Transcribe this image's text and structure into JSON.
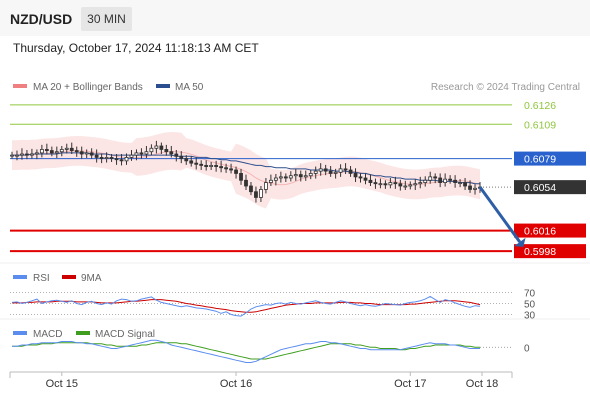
{
  "header": {
    "pair": "NZD/USD",
    "timeframe": "30 MIN",
    "datetime": "Thursday, October 17, 2024 11:18:13 AM CET"
  },
  "colors": {
    "price": "#333333",
    "ma20_band": "#f08080",
    "ma50": "#2b4f8e",
    "resistance": "#8fc73e",
    "pivot": "#2962cc",
    "support": "#e00000",
    "last": "#333333",
    "rsi": "#5b8dee",
    "rsi_ma": "#cc0000",
    "macd": "#5b8dee",
    "macd_signal": "#3f9e1f",
    "arrow": "#2e5fa6"
  },
  "chart_data": [
    {
      "type": "line",
      "title": "",
      "legend": [
        {
          "name": "MA 20 + Bollinger Bands",
          "color": "#f08080"
        },
        {
          "name": "MA 50",
          "color": "#2b4f8e"
        }
      ],
      "source": "Research © 2024 Trading Central",
      "x_tick_labels": [
        "Oct 15",
        "Oct 16",
        "Oct 17",
        "Oct 18"
      ],
      "x_tick_index": [
        10,
        45,
        80,
        94
      ],
      "n_bars": 95,
      "ylim": [
        0.5992,
        0.6132
      ],
      "levels": [
        {
          "value": 0.6126,
          "label": "0.6126",
          "kind": "resistance"
        },
        {
          "value": 0.6109,
          "label": "0.6109",
          "kind": "resistance"
        },
        {
          "value": 0.6079,
          "label": "0.6079",
          "kind": "pivot"
        },
        {
          "value": 0.6054,
          "label": "0.6054",
          "kind": "last"
        },
        {
          "value": 0.6016,
          "label": "0.6016",
          "kind": "support"
        },
        {
          "value": 0.5998,
          "label": "0.5998",
          "kind": "support"
        }
      ],
      "close": [
        0.6082,
        0.6082,
        0.6083,
        0.6082,
        0.6083,
        0.6084,
        0.6087,
        0.6086,
        0.6084,
        0.6085,
        0.6087,
        0.6088,
        0.6086,
        0.6085,
        0.6083,
        0.6084,
        0.6082,
        0.608,
        0.6079,
        0.608,
        0.6079,
        0.6078,
        0.6077,
        0.608,
        0.6082,
        0.6084,
        0.6083,
        0.6085,
        0.6088,
        0.609,
        0.6087,
        0.6085,
        0.6083,
        0.6081,
        0.6079,
        0.6077,
        0.6075,
        0.6074,
        0.6073,
        0.6072,
        0.6073,
        0.6072,
        0.6071,
        0.607,
        0.6069,
        0.6066,
        0.606,
        0.6055,
        0.605,
        0.6045,
        0.6052,
        0.6058,
        0.606,
        0.6062,
        0.6063,
        0.6062,
        0.6064,
        0.6065,
        0.6063,
        0.6064,
        0.6066,
        0.6068,
        0.607,
        0.6068,
        0.6066,
        0.6067,
        0.607,
        0.6069,
        0.6066,
        0.6063,
        0.6062,
        0.606,
        0.6058,
        0.6057,
        0.6057,
        0.6056,
        0.6058,
        0.6057,
        0.6055,
        0.6055,
        0.6056,
        0.6057,
        0.6058,
        0.606,
        0.6063,
        0.6062,
        0.6058,
        0.6061,
        0.606,
        0.6058,
        0.6058,
        0.6055,
        0.6052,
        0.6053,
        0.6054
      ],
      "ma50": [
        0.6082,
        0.6082,
        0.6082,
        0.6082,
        0.6083,
        0.6083,
        0.6083,
        0.6083,
        0.6083,
        0.6083,
        0.6084,
        0.6084,
        0.6084,
        0.6084,
        0.6084,
        0.6084,
        0.6083,
        0.6083,
        0.6083,
        0.6083,
        0.6082,
        0.6082,
        0.6082,
        0.6082,
        0.6082,
        0.6082,
        0.6082,
        0.6082,
        0.6082,
        0.6082,
        0.6082,
        0.6082,
        0.6082,
        0.6081,
        0.6081,
        0.6081,
        0.6081,
        0.608,
        0.608,
        0.608,
        0.6079,
        0.6079,
        0.6078,
        0.6078,
        0.6077,
        0.6077,
        0.6076,
        0.6075,
        0.6074,
        0.6073,
        0.6073,
        0.6072,
        0.6072,
        0.6071,
        0.6071,
        0.6071,
        0.607,
        0.607,
        0.607,
        0.607,
        0.6069,
        0.6069,
        0.6069,
        0.6069,
        0.6069,
        0.6068,
        0.6068,
        0.6068,
        0.6067,
        0.6067,
        0.6066,
        0.6066,
        0.6065,
        0.6064,
        0.6064,
        0.6063,
        0.6063,
        0.6062,
        0.6062,
        0.6061,
        0.6061,
        0.6061,
        0.606,
        0.606,
        0.606,
        0.606,
        0.6059,
        0.6059,
        0.6059,
        0.6059,
        0.6058,
        0.6058,
        0.6058,
        0.6057,
        0.6057
      ],
      "arrow": {
        "from_index": 94,
        "from_value": 0.6054,
        "to_index": 102,
        "to_value": 0.6006
      }
    },
    {
      "type": "line",
      "title": "",
      "legend": [
        {
          "name": "RSI",
          "color": "#5b8dee"
        },
        {
          "name": "9MA",
          "color": "#cc0000"
        }
      ],
      "levels": [
        {
          "value": 70,
          "label": "70"
        },
        {
          "value": 50,
          "label": "50"
        },
        {
          "value": 30,
          "label": "30"
        }
      ],
      "ylim": [
        20,
        80
      ],
      "rsi": [
        52,
        53,
        50,
        52,
        55,
        58,
        50,
        53,
        55,
        56,
        54,
        52,
        55,
        50,
        48,
        52,
        54,
        50,
        48,
        51,
        49,
        55,
        58,
        57,
        54,
        55,
        58,
        60,
        62,
        56,
        52,
        50,
        48,
        46,
        44,
        46,
        44,
        42,
        41,
        40,
        38,
        36,
        32,
        35,
        30,
        28,
        27,
        33,
        40,
        44,
        46,
        48,
        47,
        50,
        51,
        49,
        52,
        50,
        49,
        51,
        53,
        55,
        52,
        50,
        49,
        52,
        55,
        53,
        50,
        48,
        46,
        48,
        46,
        45,
        47,
        50,
        49,
        48,
        47,
        50,
        52,
        53,
        55,
        58,
        63,
        57,
        52,
        57,
        55,
        51,
        48,
        45,
        43,
        46,
        45
      ],
      "ma9": [
        51,
        51,
        51,
        52,
        52,
        53,
        53,
        53,
        53,
        54,
        54,
        54,
        54,
        53,
        53,
        53,
        53,
        52,
        51,
        51,
        51,
        51,
        52,
        53,
        54,
        54,
        55,
        56,
        57,
        57,
        57,
        56,
        55,
        54,
        52,
        50,
        49,
        47,
        46,
        44,
        43,
        41,
        40,
        39,
        37,
        36,
        35,
        34,
        34,
        35,
        37,
        39,
        41,
        43,
        45,
        47,
        48,
        49,
        50,
        50,
        50,
        51,
        51,
        51,
        51,
        51,
        52,
        52,
        52,
        51,
        51,
        50,
        50,
        49,
        48,
        48,
        48,
        48,
        48,
        48,
        49,
        49,
        50,
        51,
        52,
        53,
        54,
        55,
        55,
        55,
        54,
        53,
        52,
        50,
        48
      ]
    },
    {
      "type": "line",
      "title": "",
      "legend": [
        {
          "name": "MACD",
          "color": "#5b8dee"
        },
        {
          "name": "MACD Signal",
          "color": "#3f9e1f"
        }
      ],
      "levels": [
        {
          "value": 0,
          "label": "0"
        }
      ],
      "ylim": [
        -0.0016,
        0.0008
      ],
      "macd": [
        0.0001,
        0.0001,
        0.0002,
        0.0002,
        0.0003,
        0.0003,
        0.0004,
        0.0004,
        0.0004,
        0.0004,
        0.0005,
        0.0005,
        0.0005,
        0.0004,
        0.0004,
        0.0003,
        0.0003,
        0.0002,
        0.0001,
        0.0,
        -0.0001,
        -0.0001,
        0.0,
        0.0001,
        0.0002,
        0.0003,
        0.0004,
        0.0005,
        0.0006,
        0.0006,
        0.0005,
        0.0004,
        0.0002,
        0.0001,
        0.0,
        -0.0001,
        -0.0002,
        -0.0003,
        -0.0004,
        -0.0005,
        -0.0006,
        -0.0007,
        -0.0008,
        -0.0009,
        -0.001,
        -0.0011,
        -0.0012,
        -0.0013,
        -0.0013,
        -0.0012,
        -0.001,
        -0.0008,
        -0.0006,
        -0.0004,
        -0.0002,
        -0.0001,
        0.0,
        0.0001,
        0.0002,
        0.0003,
        0.0003,
        0.0004,
        0.0005,
        0.0005,
        0.0004,
        0.0004,
        0.0003,
        0.0002,
        0.0001,
        0.0,
        -0.0001,
        -0.0001,
        -0.0002,
        -0.0002,
        -0.0002,
        -0.0002,
        -0.0002,
        -0.0002,
        -0.0002,
        -0.0001,
        0.0,
        0.0001,
        0.0002,
        0.0003,
        0.0004,
        0.0003,
        0.0003,
        0.0003,
        0.0002,
        0.0002,
        0.0001,
        0.0,
        -0.0001,
        -0.0001,
        -0.0001
      ],
      "signal": [
        0.0001,
        0.0001,
        0.0001,
        0.0002,
        0.0002,
        0.0002,
        0.0003,
        0.0003,
        0.0003,
        0.0004,
        0.0004,
        0.0004,
        0.0004,
        0.0004,
        0.0004,
        0.0004,
        0.0003,
        0.0003,
        0.0003,
        0.0002,
        0.0002,
        0.0001,
        0.0001,
        0.0001,
        0.0001,
        0.0001,
        0.0002,
        0.0002,
        0.0003,
        0.0004,
        0.0004,
        0.0004,
        0.0004,
        0.0004,
        0.0003,
        0.0003,
        0.0002,
        0.0001,
        0.0,
        -0.0001,
        -0.0002,
        -0.0003,
        -0.0004,
        -0.0005,
        -0.0006,
        -0.0007,
        -0.0008,
        -0.0009,
        -0.001,
        -0.001,
        -0.001,
        -0.001,
        -0.0009,
        -0.0008,
        -0.0007,
        -0.0006,
        -0.0005,
        -0.0004,
        -0.0003,
        -0.0002,
        -0.0001,
        0.0,
        0.0001,
        0.0002,
        0.0003,
        0.0003,
        0.0003,
        0.0003,
        0.0003,
        0.0002,
        0.0002,
        0.0001,
        0.0,
        0.0,
        -0.0001,
        -0.0001,
        -0.0001,
        -0.0001,
        -0.0002,
        -0.0002,
        -0.0001,
        -0.0001,
        0.0,
        0.0001,
        0.0001,
        0.0002,
        0.0002,
        0.0002,
        0.0002,
        0.0002,
        0.0002,
        0.0001,
        0.0001,
        0.0,
        0.0
      ]
    }
  ]
}
